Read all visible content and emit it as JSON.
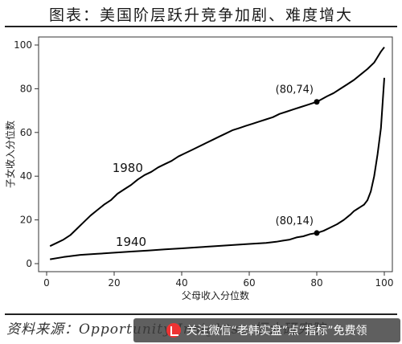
{
  "header": {
    "title": "图表：美国阶层跃升竞争加剧、难度增大"
  },
  "footer": {
    "source": "资料来源：Opportunity Insights，恒大研究院",
    "watermark": "关注微信“老韩实盘”点“指标”免费领",
    "watermark_icon": "wechat-icon"
  },
  "chart_data": {
    "type": "line",
    "title": "",
    "xlabel": "父母收入分位数",
    "ylabel": "子女收入分位数",
    "xlim": [
      0,
      100
    ],
    "ylim": [
      0,
      100
    ],
    "xticks": [
      0,
      20,
      40,
      60,
      80,
      100
    ],
    "yticks": [
      0,
      20,
      40,
      60,
      80,
      100
    ],
    "grid": false,
    "legend": "none",
    "series": [
      {
        "name": "1980",
        "color": "#000000",
        "x": [
          1,
          3,
          5,
          7,
          9,
          11,
          13,
          15,
          17,
          19,
          21,
          23,
          25,
          27,
          29,
          31,
          33,
          35,
          37,
          39,
          41,
          43,
          45,
          47,
          49,
          51,
          53,
          55,
          57,
          59,
          61,
          63,
          65,
          67,
          69,
          71,
          73,
          75,
          77,
          79,
          80,
          81,
          83,
          85,
          87,
          89,
          91,
          93,
          95,
          97,
          98,
          99,
          100
        ],
        "y": [
          8,
          9.5,
          11,
          13,
          16,
          19,
          22,
          24.5,
          27,
          29,
          32,
          34,
          36,
          38.5,
          40.5,
          42,
          44,
          45.5,
          47,
          49,
          50.5,
          52,
          53.5,
          55,
          56.5,
          58,
          59.5,
          61,
          62,
          63,
          64,
          65,
          66,
          67,
          68.5,
          69.5,
          70.5,
          71.5,
          72.5,
          73.5,
          74,
          74.8,
          76.5,
          78,
          80,
          82,
          84,
          86.5,
          89,
          92,
          94.5,
          97,
          99
        ]
      },
      {
        "name": "1940",
        "color": "#000000",
        "x": [
          1,
          5,
          10,
          15,
          20,
          25,
          30,
          35,
          40,
          45,
          50,
          55,
          60,
          65,
          68,
          70,
          72,
          74,
          76,
          78,
          80,
          82,
          84,
          86,
          88,
          90,
          91,
          92,
          93,
          94,
          95,
          96,
          97,
          98,
          99,
          100
        ],
        "y": [
          2,
          3,
          4,
          4.5,
          5,
          5.5,
          6,
          6.5,
          7,
          7.5,
          8,
          8.5,
          9,
          9.5,
          10,
          10.5,
          11,
          12,
          12.5,
          13.5,
          14,
          15,
          16.5,
          18,
          20,
          22.5,
          24,
          25,
          26,
          27,
          29,
          33,
          40,
          50,
          62,
          85
        ]
      }
    ],
    "annotations": [
      {
        "label": "(80,74)",
        "x": 80,
        "y": 74
      },
      {
        "label": "(80,14)",
        "x": 80,
        "y": 14
      }
    ],
    "series_labels": [
      {
        "text": "1980",
        "x": 24,
        "y": 42
      },
      {
        "text": "1940",
        "x": 25,
        "y": 8
      }
    ]
  }
}
